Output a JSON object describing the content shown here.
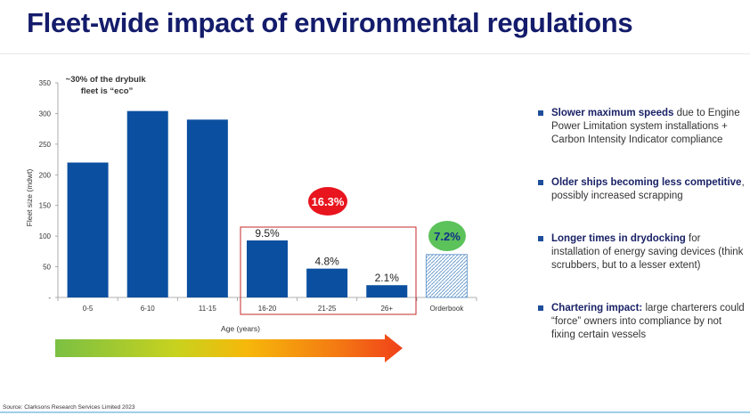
{
  "title": "Fleet-wide impact of environmental regulations",
  "source": "Source: Clarksons Research Services Limited 2023",
  "bullets": [
    {
      "bold": "Slower maximum speeds",
      "rest": " due to Engine Power Limitation system installations + Carbon Intensity Indicator compliance"
    },
    {
      "bold": "Older ships becoming less competitive",
      "rest": ", possibly increased scrapping"
    },
    {
      "bold": "Longer times in drydocking",
      "rest": " for installation of energy saving devices (think scrubbers, but to a lesser extent)"
    },
    {
      "bold": "Chartering impact:",
      "rest": " large charterers could “force” owners into compliance by not fixing certain vessels"
    }
  ],
  "colors": {
    "bar": "#0b4fa0",
    "title": "#141c6b",
    "highlight_box": "#c62828",
    "badge_red": "#e8141e",
    "badge_green": "#5cc25a",
    "orderbook_hatch": "#6f9ecf"
  },
  "chart_data": {
    "type": "bar",
    "categories": [
      "0-5",
      "6-10",
      "11-15",
      "16-20",
      "21-25",
      "26+",
      "Orderbook"
    ],
    "values": [
      220,
      304,
      290,
      93,
      47,
      20,
      70
    ],
    "ylabel": "Fleet size (mdwt)",
    "xlabel": "Age (years)",
    "ylim": [
      0,
      350
    ],
    "yticks": [
      "-",
      "50",
      "100",
      "150",
      "200",
      "250",
      "300",
      "350"
    ],
    "bar_labels": {
      "16-20": "9.5%",
      "21-25": "4.8%",
      "26+": "2.1%"
    },
    "annotation": "~30% of the drybulk fleet is “eco”",
    "highlight_group": [
      "16-20",
      "21-25",
      "26+"
    ],
    "highlight_label": "16.3%",
    "orderbook_label": "7.2%",
    "hatched": [
      "Orderbook"
    ],
    "grid": false
  }
}
